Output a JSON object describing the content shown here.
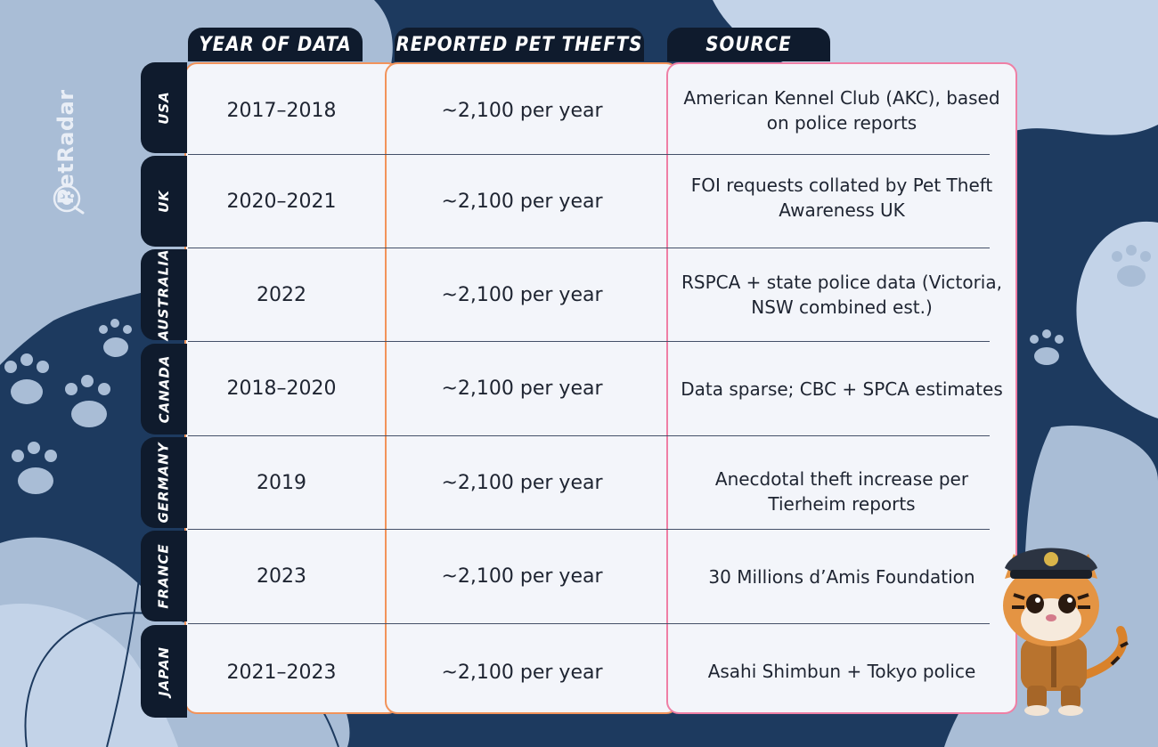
{
  "brand": {
    "name": "PetRadar",
    "logo_icon": "paw-circle-logo-icon"
  },
  "headers": {
    "year": "YEAR OF DATA",
    "thefts": "REPORTED PET THEFTS",
    "source": "SOURCE"
  },
  "rows": [
    {
      "country": "USA",
      "year": "2017–2018",
      "thefts": "~2,100 per year",
      "source": "American Kennel Club (AKC), based on police reports"
    },
    {
      "country": "UK",
      "year": "2020–2021",
      "thefts": "~2,100 per year",
      "source": "FOI requests collated by Pet Theft Awareness UK"
    },
    {
      "country": "AUSTRALIA",
      "year": "2022",
      "thefts": "~2,100 per year",
      "source": "RSPCA + state police data (Victoria, NSW combined est.)"
    },
    {
      "country": "CANADA",
      "year": "2018–2020",
      "thefts": "~2,100 per year",
      "source": "Data sparse; CBC + SPCA estimates"
    },
    {
      "country": "GERMANY",
      "year": "2019",
      "thefts": "~2,100 per year",
      "source": "Anecdotal theft increase per Tierheim reports"
    },
    {
      "country": "FRANCE",
      "year": "2023",
      "thefts": "~2,100 per year",
      "source": "30 Millions d’Amis Foundation"
    },
    {
      "country": "JAPAN",
      "year": "2021–2023",
      "thefts": "~2,100 per year",
      "source": "Asahi Shimbun + Tokyo police"
    }
  ],
  "colors": {
    "background": "#1d3a5f",
    "header": "#0f1b2d",
    "accent_orange": "#f2935a",
    "accent_pink": "#ef7fa5",
    "cell": "#f3f5fa"
  },
  "mascot": "tiger-police-mascot-icon"
}
